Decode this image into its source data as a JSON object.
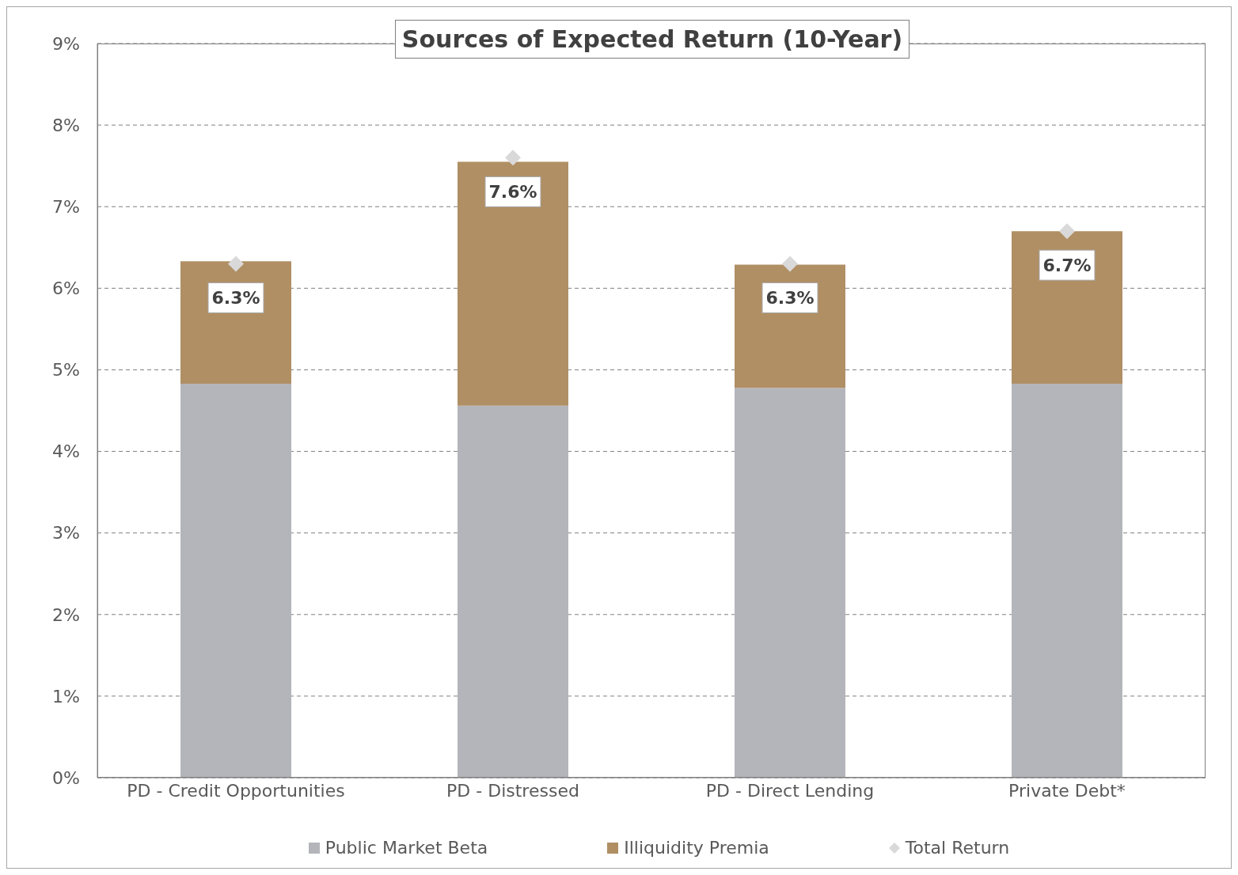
{
  "chart_data": {
    "type": "bar",
    "title": "Sources of Expected Return (10-Year)",
    "categories": [
      "PD - Credit Opportunities",
      "PD - Distressed",
      "PD - Direct Lending",
      "Private Debt*"
    ],
    "stacked": true,
    "series": [
      {
        "name": "Public Market Beta",
        "color": "#b4b5ba",
        "values": [
          4.83,
          4.56,
          4.78,
          4.83
        ]
      },
      {
        "name": "Illiquidity Premia",
        "color": "#b08f64",
        "values": [
          1.5,
          2.99,
          1.51,
          1.87
        ]
      },
      {
        "name": "Total Return",
        "type": "scatter",
        "color": "#d9d9d9",
        "x": [
          "PD - Credit Opportunities",
          "PD - Distressed",
          "PD - Direct Lending",
          "Private Debt*"
        ],
        "values": [
          6.3,
          7.6,
          6.3,
          6.7
        ],
        "value_labels": [
          "6.3%",
          "7.6%",
          "6.3%",
          "6.7%"
        ],
        "marker": "diamond"
      }
    ],
    "ylim": [
      0,
      9
    ],
    "yticks": [
      {
        "value": 0,
        "label": "0%"
      },
      {
        "value": 1,
        "label": "1%"
      },
      {
        "value": 2,
        "label": "2%"
      },
      {
        "value": 3,
        "label": "3%"
      },
      {
        "value": 4,
        "label": "4%"
      },
      {
        "value": 5,
        "label": "5%"
      },
      {
        "value": 6,
        "label": "6%"
      },
      {
        "value": 7,
        "label": "7%"
      },
      {
        "value": 8,
        "label": "8%"
      },
      {
        "value": 9,
        "label": "9%"
      }
    ],
    "grid": "y",
    "line_style": "dashed",
    "legend": "bottom"
  }
}
